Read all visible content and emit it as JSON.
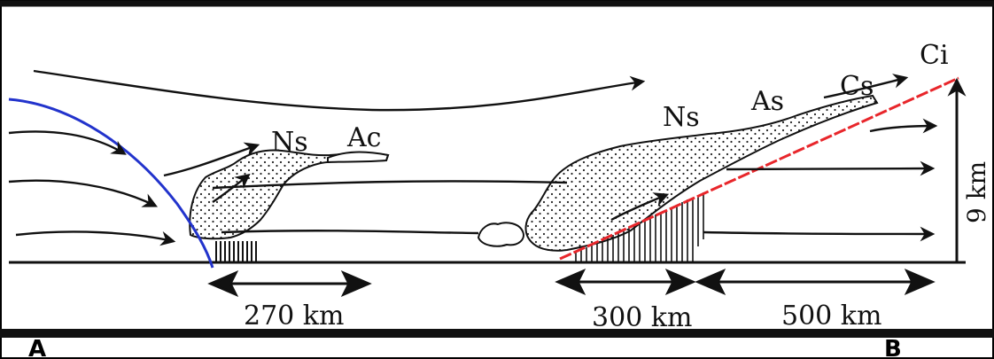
{
  "clouds": {
    "cold_front_ns": "Ns",
    "cold_front_ac": "Ac",
    "warm_front_ns": "Ns",
    "warm_front_as": "As",
    "warm_front_cs": "Cs",
    "warm_front_ci": "Ci"
  },
  "distances": {
    "cold_front_width": "270 km",
    "warm_front_rain": "300 km",
    "warm_front_cloud": "500 km"
  },
  "height_label": "9 km",
  "corner_labels": {
    "left": "A",
    "right": "B"
  },
  "colors": {
    "cold_front_line": "#2233cc",
    "warm_front_line": "#e8262b",
    "ink": "#111111"
  }
}
